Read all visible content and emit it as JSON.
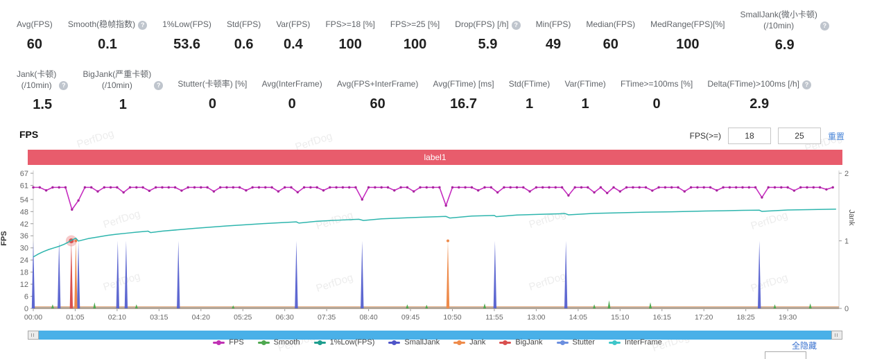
{
  "watermark": {
    "text": "PerfDog"
  },
  "metrics_row1": [
    {
      "label": "Avg(FPS)",
      "value": "60",
      "help": false
    },
    {
      "label": "Smooth(稳帧指数)",
      "value": "0.1",
      "help": true
    },
    {
      "label": "1%Low(FPS)",
      "value": "53.6",
      "help": false
    },
    {
      "label": "Std(FPS)",
      "value": "0.6",
      "help": false
    },
    {
      "label": "Var(FPS)",
      "value": "0.4",
      "help": false
    },
    {
      "label": "FPS>=18 [%]",
      "value": "100",
      "help": false
    },
    {
      "label": "FPS>=25 [%]",
      "value": "100",
      "help": false
    },
    {
      "label": "Drop(FPS) [/h]",
      "value": "5.9",
      "help": true
    },
    {
      "label": "Min(FPS)",
      "value": "49",
      "help": false
    },
    {
      "label": "Median(FPS)",
      "value": "60",
      "help": false
    },
    {
      "label": "MedRange(FPS)[%]",
      "value": "100",
      "help": false
    },
    {
      "label": "SmallJank(微小卡顿)\n(/10min)",
      "value": "6.9",
      "help": true
    }
  ],
  "metrics_row2": [
    {
      "label": "Jank(卡顿)\n(/10min)",
      "value": "1.5",
      "help": true
    },
    {
      "label": "BigJank(严重卡顿)\n(/10min)",
      "value": "1",
      "help": true
    },
    {
      "label": "Stutter(卡顿率) [%]",
      "value": "0",
      "help": false
    },
    {
      "label": "Avg(InterFrame)",
      "value": "0",
      "help": false
    },
    {
      "label": "Avg(FPS+InterFrame)",
      "value": "60",
      "help": false
    },
    {
      "label": "Avg(FTime) [ms]",
      "value": "16.7",
      "help": false
    },
    {
      "label": "Std(FTime)",
      "value": "1",
      "help": false
    },
    {
      "label": "Var(FTime)",
      "value": "1",
      "help": false
    },
    {
      "label": "FTime>=100ms [%]",
      "value": "0",
      "help": false
    },
    {
      "label": "Delta(FTime)>100ms [/h]",
      "value": "2.9",
      "help": true
    }
  ],
  "section": {
    "title": "FPS"
  },
  "fps_filter": {
    "label": "FPS(>=)",
    "min": "18",
    "max": "25",
    "reset_label": "重置"
  },
  "banner": {
    "label": "label1",
    "color": "#e85c6c"
  },
  "hide_all_label": "全隐藏",
  "chart_data": {
    "type": "line",
    "title": "FPS",
    "fps_axis": {
      "label": "FPS",
      "ticks": [
        0,
        6,
        12,
        18,
        24,
        30,
        36,
        42,
        48,
        54,
        61,
        67
      ],
      "max": 67
    },
    "jank_axis": {
      "label": "Jank",
      "ticks": [
        0,
        1,
        2
      ],
      "max": 2
    },
    "time_ticks": [
      "00:00",
      "01:05",
      "02:10",
      "03:15",
      "04:20",
      "05:25",
      "06:30",
      "07:35",
      "08:40",
      "09:45",
      "10:50",
      "11:55",
      "13:00",
      "14:05",
      "15:10",
      "16:15",
      "17:20",
      "18:25",
      "19:30"
    ],
    "time_tick_interval_s": 65,
    "series": {
      "fps": {
        "name": "FPS",
        "color": "#c62cc0",
        "dot_color": "#a8249e",
        "t0": 0,
        "dt": 10,
        "values": [
          60,
          60,
          58.5,
          60,
          60,
          60,
          49,
          53.5,
          60,
          60,
          58,
          60,
          60,
          60,
          57.5,
          60,
          60,
          60,
          58.3,
          60,
          60,
          60,
          60,
          58.4,
          60,
          60,
          60,
          60,
          58,
          60,
          60,
          60,
          60,
          58.5,
          60,
          60,
          60,
          60,
          58,
          60,
          60,
          57.6,
          60,
          60,
          60,
          58.5,
          60,
          60,
          60,
          60,
          60,
          54,
          60,
          60,
          60,
          60,
          58.5,
          60,
          60,
          58,
          60,
          60,
          60,
          60,
          51,
          60,
          60,
          60,
          60,
          58.5,
          60,
          60,
          57.5,
          60,
          60,
          60,
          60,
          58,
          60,
          60,
          60,
          60,
          60,
          56,
          60,
          60,
          60,
          57.5,
          60,
          57.2,
          60,
          58,
          60,
          60,
          60,
          60,
          58.4,
          60,
          60,
          60,
          60,
          58,
          60,
          60,
          60,
          60,
          58.5,
          60,
          60,
          60,
          60,
          60,
          60,
          55,
          60,
          60,
          60,
          60,
          58.4,
          60,
          60,
          60,
          60,
          59,
          60
        ]
      },
      "interframe": {
        "name": "InterFrame",
        "color": "#2db5ad",
        "points": [
          [
            0,
            25.5
          ],
          [
            8,
            27
          ],
          [
            16,
            28.2
          ],
          [
            24,
            29.2
          ],
          [
            32,
            30
          ],
          [
            40,
            30.8
          ],
          [
            48,
            31.8
          ],
          [
            54,
            32.8
          ],
          [
            58,
            33.6
          ],
          [
            62,
            34.2
          ],
          [
            66,
            34.8
          ],
          [
            70,
            33.4
          ],
          [
            85,
            34.6
          ],
          [
            100,
            35.4
          ],
          [
            115,
            36.2
          ],
          [
            130,
            36.8
          ],
          [
            145,
            37.3
          ],
          [
            160,
            37.8
          ],
          [
            178,
            38.3
          ],
          [
            182,
            37.6
          ],
          [
            200,
            38.3
          ],
          [
            225,
            39
          ],
          [
            250,
            39.7
          ],
          [
            275,
            40.3
          ],
          [
            300,
            40.9
          ],
          [
            330,
            41.5
          ],
          [
            360,
            42.1
          ],
          [
            390,
            42.6
          ],
          [
            408,
            42.9
          ],
          [
            412,
            42.3
          ],
          [
            440,
            43.2
          ],
          [
            470,
            43.7
          ],
          [
            505,
            44.2
          ],
          [
            512,
            43.6
          ],
          [
            540,
            44.4
          ],
          [
            570,
            44.8
          ],
          [
            600,
            45.2
          ],
          [
            640,
            45.6
          ],
          [
            646,
            44.8
          ],
          [
            680,
            45.8
          ],
          [
            715,
            46.1
          ],
          [
            718,
            45.5
          ],
          [
            750,
            46.3
          ],
          [
            790,
            46.7
          ],
          [
            825,
            47
          ],
          [
            830,
            46.4
          ],
          [
            870,
            47.1
          ],
          [
            910,
            47.4
          ],
          [
            950,
            47.7
          ],
          [
            990,
            47.9
          ],
          [
            1030,
            48.2
          ],
          [
            1070,
            48.4
          ],
          [
            1100,
            48.6
          ],
          [
            1126,
            48.7
          ],
          [
            1130,
            48.1
          ],
          [
            1170,
            48.8
          ],
          [
            1210,
            49
          ],
          [
            1245,
            49.2
          ]
        ]
      },
      "stutter_spikes": {
        "name": "Stutter/SmallJank",
        "color": "#5560cf",
        "jank_value": 1,
        "times": [
          0,
          40,
          70,
          131,
          144,
          225,
          408,
          510,
          716,
          826,
          1126
        ]
      },
      "jank_spikes": {
        "name": "Jank",
        "color": "#ee8b4b",
        "jank_value": 1,
        "times": [
          66,
          643
        ]
      },
      "bigjank_spikes": {
        "name": "BigJank",
        "color": "#d9504f",
        "jank_value": 1,
        "times": [
          59
        ],
        "highlight_time": 59
      },
      "smooth_blips": {
        "name": "Smooth",
        "color": "#4ea84f",
        "points": [
          [
            30,
            2
          ],
          [
            95,
            3
          ],
          [
            160,
            2
          ],
          [
            310,
            1.5
          ],
          [
            580,
            2
          ],
          [
            610,
            1.8
          ],
          [
            700,
            2.5
          ],
          [
            870,
            2
          ],
          [
            893,
            4
          ],
          [
            957,
            3
          ],
          [
            1150,
            2
          ],
          [
            1205,
            2.5
          ]
        ]
      }
    },
    "legend": [
      {
        "name": "FPS",
        "color": "#c032b4"
      },
      {
        "name": "Smooth",
        "color": "#4ea84f"
      },
      {
        "name": "1%Low(FPS)",
        "color": "#1e9e8e"
      },
      {
        "name": "SmallJank",
        "color": "#4f55c8"
      },
      {
        "name": "Jank",
        "color": "#ee8b4b"
      },
      {
        "name": "BigJank",
        "color": "#d9504f"
      },
      {
        "name": "Stutter",
        "color": "#6b8fdf"
      },
      {
        "name": "InterFrame",
        "color": "#3ec6c9"
      }
    ]
  }
}
